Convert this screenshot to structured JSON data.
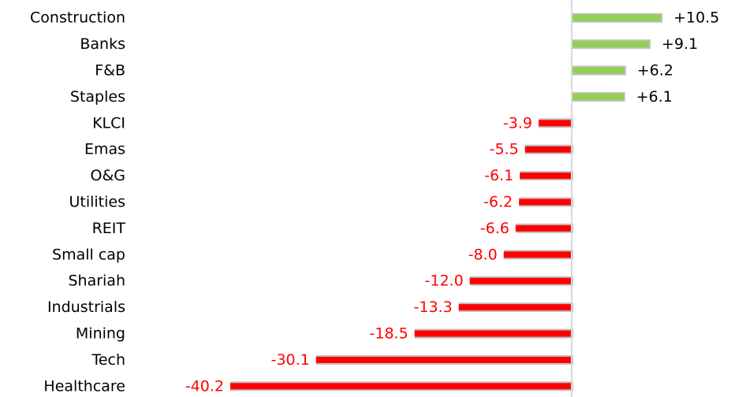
{
  "chart_data": {
    "type": "bar",
    "orientation": "horizontal",
    "categories": [
      "Construction",
      "Banks",
      "F&B",
      "Staples",
      "KLCI",
      "Emas",
      "O&G",
      "Utilities",
      "REIT",
      "Small cap",
      "Shariah",
      "Industrials",
      "Mining",
      "Tech",
      "Healthcare"
    ],
    "values": [
      10.5,
      9.1,
      6.2,
      6.1,
      -3.9,
      -5.5,
      -6.1,
      -6.2,
      -6.6,
      -8.0,
      -12.0,
      -13.3,
      -18.5,
      -30.1,
      -40.2
    ],
    "value_labels": [
      "+10.5",
      "+9.1",
      "+6.2",
      "+6.1",
      "-3.9",
      "-5.5",
      "-6.1",
      "-6.2",
      "-6.6",
      "-8.0",
      "-12.0",
      "-13.3",
      "-18.5",
      "-30.1",
      "-40.2"
    ],
    "xlim": [
      -40.2,
      10.5
    ],
    "grid": false,
    "legend": "none",
    "colors": {
      "positive": "#92d050",
      "negative": "#ff0000",
      "bar_shadow": "#bfbfbf",
      "axis": "#d9d9d9",
      "positive_label": "#000000",
      "negative_label": "#ff0000"
    }
  }
}
